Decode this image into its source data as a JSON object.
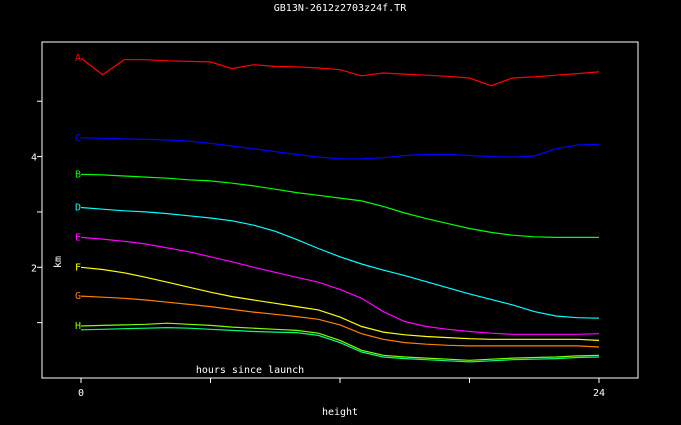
{
  "chart_data": {
    "type": "line",
    "title": "GB13N-2612z2703z24f.TR",
    "xlabel": "height",
    "inner_label": "hours since launch",
    "ylabel": "km",
    "xlim": [
      0,
      24
    ],
    "ylim": [
      0,
      6.07
    ],
    "x_ticks": [
      0,
      6,
      12,
      18,
      24
    ],
    "x_tick_labels": [
      "0",
      "",
      "",
      "",
      "24"
    ],
    "y_ticks": [
      1,
      2,
      3,
      4,
      5
    ],
    "y_tick_labels": [
      "",
      "2",
      "",
      "4",
      ""
    ],
    "grid": false,
    "x": [
      0,
      1,
      2,
      3,
      4,
      5,
      6,
      7,
      8,
      9,
      10,
      11,
      12,
      13,
      14,
      15,
      16,
      17,
      18,
      19,
      20,
      21,
      22,
      23,
      24
    ],
    "series": [
      {
        "name": "A",
        "color": "#ff0000",
        "values": [
          5.78,
          5.48,
          5.75,
          5.75,
          5.73,
          5.72,
          5.71,
          5.59,
          5.66,
          5.63,
          5.62,
          5.6,
          5.57,
          5.46,
          5.51,
          5.49,
          5.47,
          5.45,
          5.42,
          5.28,
          5.42,
          5.44,
          5.47,
          5.5,
          5.53
        ]
      },
      {
        "name": "C",
        "color": "#0000ff",
        "values": [
          4.34,
          4.33,
          4.32,
          4.31,
          4.3,
          4.28,
          4.24,
          4.19,
          4.14,
          4.09,
          4.04,
          3.99,
          3.96,
          3.96,
          3.98,
          4.02,
          4.04,
          4.04,
          4.02,
          4.0,
          3.99,
          4.01,
          4.14,
          4.21,
          4.22
        ]
      },
      {
        "name": "B",
        "color": "#00ff00",
        "values": [
          3.68,
          3.67,
          3.65,
          3.63,
          3.61,
          3.58,
          3.56,
          3.52,
          3.47,
          3.41,
          3.35,
          3.3,
          3.25,
          3.2,
          3.1,
          2.98,
          2.88,
          2.79,
          2.7,
          2.63,
          2.58,
          2.55,
          2.54,
          2.54,
          2.54
        ]
      },
      {
        "name": "D",
        "color": "#00ffff",
        "values": [
          3.08,
          3.05,
          3.02,
          3.0,
          2.97,
          2.93,
          2.89,
          2.84,
          2.76,
          2.65,
          2.5,
          2.34,
          2.19,
          2.06,
          1.95,
          1.85,
          1.74,
          1.63,
          1.52,
          1.42,
          1.32,
          1.2,
          1.12,
          1.09,
          1.08
        ]
      },
      {
        "name": "E",
        "color": "#ff00ff",
        "values": [
          2.54,
          2.51,
          2.47,
          2.42,
          2.35,
          2.28,
          2.19,
          2.1,
          2.0,
          1.91,
          1.82,
          1.73,
          1.6,
          1.44,
          1.2,
          1.02,
          0.93,
          0.88,
          0.84,
          0.81,
          0.79,
          0.79,
          0.79,
          0.79,
          0.8
        ]
      },
      {
        "name": "F",
        "color": "#ffff00",
        "values": [
          2.0,
          1.96,
          1.9,
          1.82,
          1.73,
          1.64,
          1.55,
          1.47,
          1.41,
          1.35,
          1.29,
          1.23,
          1.1,
          0.93,
          0.83,
          0.78,
          0.75,
          0.73,
          0.71,
          0.7,
          0.7,
          0.7,
          0.7,
          0.7,
          0.68
        ]
      },
      {
        "name": "G",
        "color": "#ff8000",
        "values": [
          1.48,
          1.46,
          1.44,
          1.41,
          1.37,
          1.33,
          1.29,
          1.24,
          1.19,
          1.15,
          1.11,
          1.06,
          0.96,
          0.8,
          0.7,
          0.64,
          0.61,
          0.59,
          0.58,
          0.58,
          0.58,
          0.58,
          0.58,
          0.58,
          0.56
        ]
      },
      {
        "name": "H",
        "color": "#80ff00",
        "values": [
          0.94,
          0.95,
          0.96,
          0.97,
          0.99,
          0.97,
          0.95,
          0.92,
          0.9,
          0.88,
          0.86,
          0.81,
          0.68,
          0.5,
          0.41,
          0.38,
          0.36,
          0.34,
          0.32,
          0.34,
          0.36,
          0.37,
          0.38,
          0.4,
          0.41
        ]
      },
      {
        "name": "",
        "color": "#00ff80",
        "values": [
          0.87,
          0.88,
          0.89,
          0.9,
          0.91,
          0.9,
          0.88,
          0.86,
          0.84,
          0.83,
          0.82,
          0.77,
          0.64,
          0.47,
          0.38,
          0.35,
          0.33,
          0.31,
          0.29,
          0.31,
          0.33,
          0.34,
          0.35,
          0.37,
          0.38
        ]
      }
    ]
  }
}
